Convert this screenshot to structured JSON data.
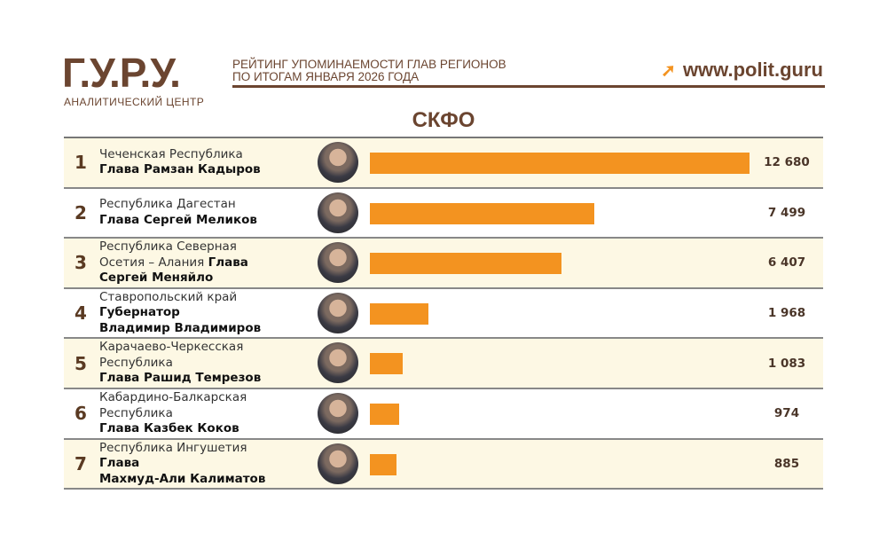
{
  "header": {
    "logo": "Г.У.Р.У.",
    "logo_subtitle": "АНАЛИТИЧЕСКИЙ ЦЕНТР",
    "subtitle_line1": "РЕЙТИНГ УПОМИНАЕМОСТИ ГЛАВ РЕГИОНОВ",
    "subtitle_line2": "ПО ИТОГАМ ЯНВАРЯ 2026 ГОДА",
    "website": "www.polit.guru",
    "website_icon": "arrow-up-right-icon"
  },
  "colors": {
    "brand": "#6b4530",
    "bar": "#f39320",
    "row_alt": "#fdf8e4"
  },
  "chart_data": {
    "type": "bar",
    "orientation": "horizontal",
    "title": "СКФО",
    "xlim": [
      0,
      12680
    ],
    "rows": [
      {
        "rank": "1",
        "value": 12680,
        "value_label": "12 680",
        "lines": [
          [
            {
              "t": "Чеченская Республика",
              "b": false
            }
          ],
          [
            {
              "t": "Глава Рамзан Кадыров",
              "b": true
            }
          ]
        ]
      },
      {
        "rank": "2",
        "value": 7499,
        "value_label": "7 499",
        "lines": [
          [
            {
              "t": "Республика Дагестан",
              "b": false
            }
          ],
          [
            {
              "t": "Глава Сергей Меликов",
              "b": true
            }
          ]
        ]
      },
      {
        "rank": "3",
        "value": 6407,
        "value_label": "6 407",
        "lines": [
          [
            {
              "t": "Республика Северная",
              "b": false
            }
          ],
          [
            {
              "t": "Осетия – Алания ",
              "b": false
            },
            {
              "t": "Глава",
              "b": true
            }
          ],
          [
            {
              "t": "Сергей Меняйло",
              "b": true
            }
          ]
        ]
      },
      {
        "rank": "4",
        "value": 1968,
        "value_label": "1 968",
        "lines": [
          [
            {
              "t": "Ставропольский край",
              "b": false
            }
          ],
          [
            {
              "t": "Губернатор",
              "b": true
            }
          ],
          [
            {
              "t": "Владимир Владимиров",
              "b": true
            }
          ]
        ]
      },
      {
        "rank": "5",
        "value": 1083,
        "value_label": "1 083",
        "lines": [
          [
            {
              "t": "Карачаево-Черкесская",
              "b": false
            }
          ],
          [
            {
              "t": "Республика",
              "b": false
            }
          ],
          [
            {
              "t": "Глава Рашид Темрезов",
              "b": true
            }
          ]
        ]
      },
      {
        "rank": "6",
        "value": 974,
        "value_label": "974",
        "lines": [
          [
            {
              "t": "Кабардино-Балкарская",
              "b": false
            }
          ],
          [
            {
              "t": "Республика",
              "b": false
            }
          ],
          [
            {
              "t": "Глава Казбек Коков",
              "b": true
            }
          ]
        ]
      },
      {
        "rank": "7",
        "value": 885,
        "value_label": "885",
        "lines": [
          [
            {
              "t": "Республика Ингушетия",
              "b": false
            }
          ],
          [
            {
              "t": "Глава",
              "b": true
            }
          ],
          [
            {
              "t": "Махмуд-Али Калиматов",
              "b": true
            }
          ]
        ]
      }
    ]
  }
}
